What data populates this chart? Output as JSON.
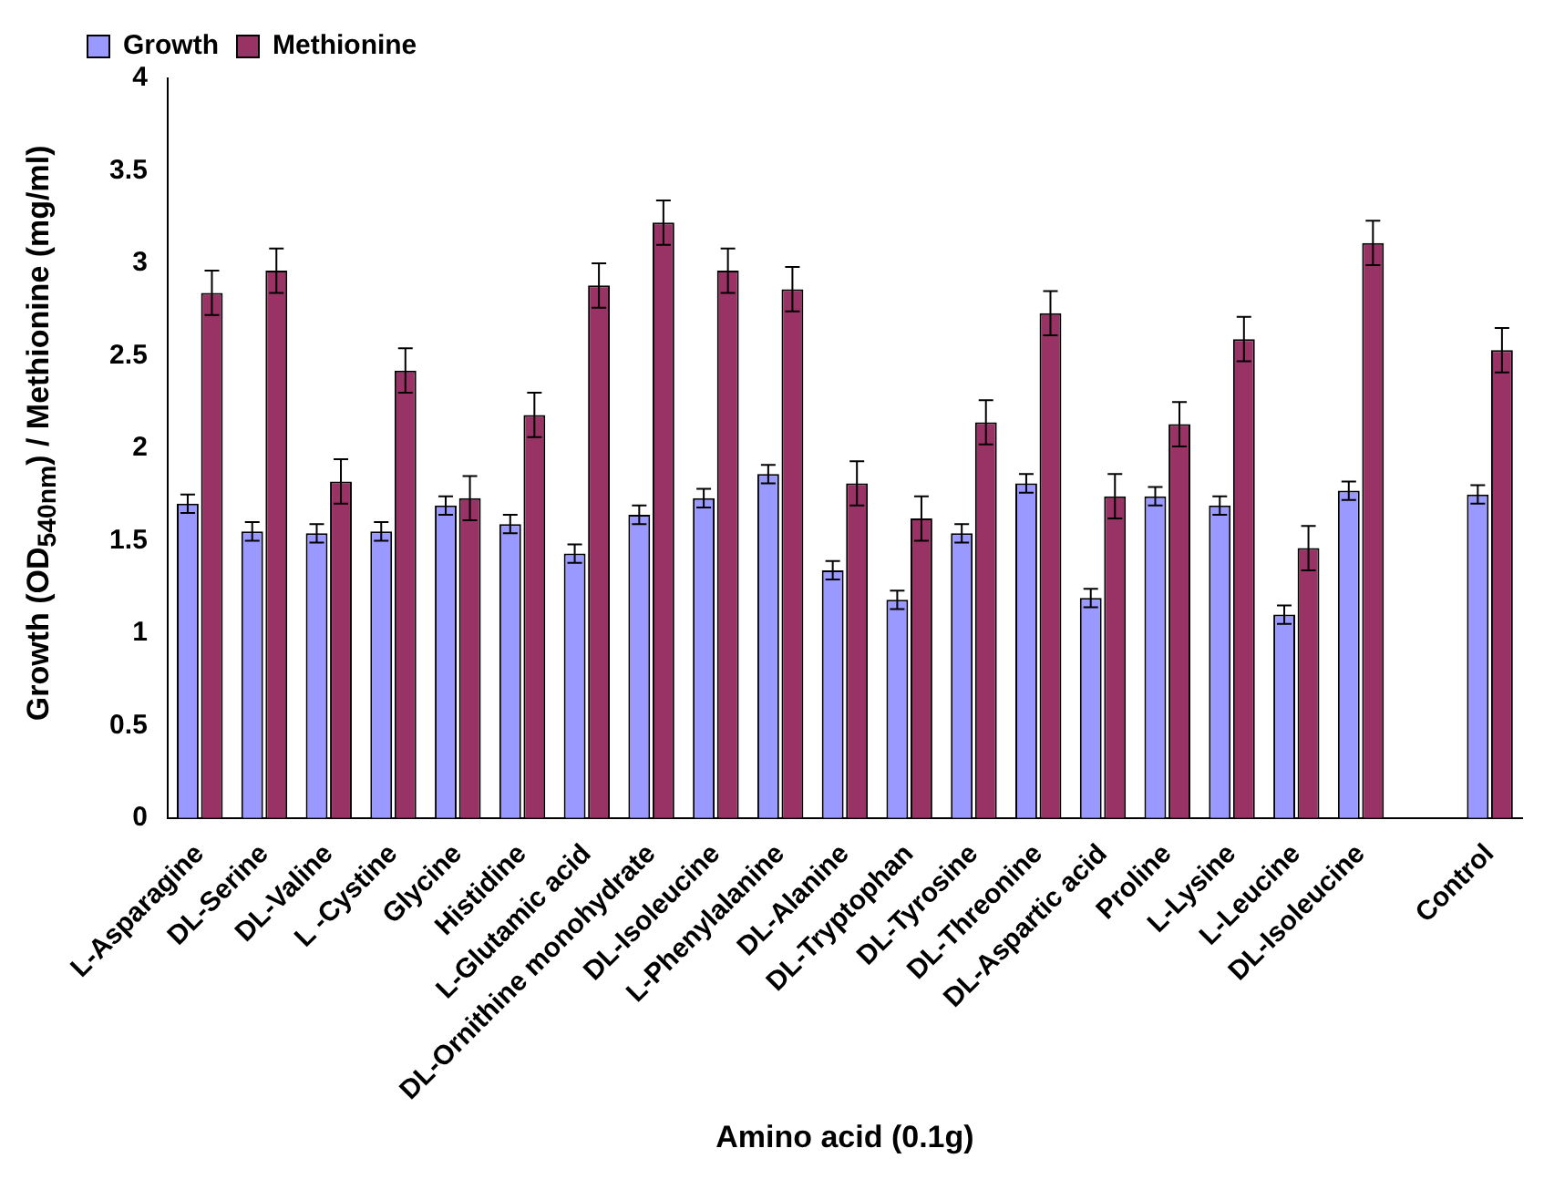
{
  "chart_data": {
    "type": "bar",
    "xlabel": "Amino acid (0.1g)",
    "ylabel": "Growth (OD$_{540nm}$) / Methionine (mg/ml)",
    "categories": [
      "L-Asparagine",
      "DL-Serine",
      "DL-Valine",
      "L -Cystine",
      "Glycine",
      "Histidine",
      "L-Glutamic acid",
      "DL-Ornithine monohydrate",
      "DL-Isoleucine",
      "L-Phenylalanine",
      "DL-Alanine",
      "DL-Tryptophan",
      "DL-Tyrosine",
      "DL-Threonine",
      "DL-Aspartic acid",
      "Proline",
      "L-Lysine",
      "L-Leucine",
      "DL-Isoleucine",
      null,
      "Control"
    ],
    "series": [
      {
        "name": "Growth",
        "color": "#9999ff",
        "values": [
          1.7,
          1.55,
          1.54,
          1.55,
          1.69,
          1.59,
          1.43,
          1.64,
          1.73,
          1.86,
          1.34,
          1.18,
          1.54,
          1.81,
          1.19,
          1.74,
          1.69,
          1.1,
          1.77,
          null,
          1.75
        ],
        "errors": [
          0.05,
          0.05,
          0.05,
          0.05,
          0.05,
          0.05,
          0.05,
          0.05,
          0.05,
          0.05,
          0.05,
          0.05,
          0.05,
          0.05,
          0.05,
          0.05,
          0.05,
          0.05,
          0.05,
          null,
          0.05
        ]
      },
      {
        "name": "Methionine",
        "color": "#993366",
        "values": [
          2.84,
          2.96,
          1.82,
          2.42,
          1.73,
          2.18,
          2.88,
          3.22,
          2.96,
          2.86,
          1.81,
          1.62,
          2.14,
          2.73,
          1.74,
          2.13,
          2.59,
          1.46,
          3.11,
          null,
          2.53
        ],
        "errors": [
          0.12,
          0.12,
          0.12,
          0.12,
          0.12,
          0.12,
          0.12,
          0.12,
          0.12,
          0.12,
          0.12,
          0.12,
          0.12,
          0.12,
          0.12,
          0.12,
          0.12,
          0.12,
          0.12,
          null,
          0.12
        ]
      }
    ],
    "ylim": [
      0,
      4
    ],
    "yticks": [
      0,
      0.5,
      1,
      1.5,
      2,
      2.5,
      3,
      3.5,
      4
    ],
    "grid": false,
    "legend": "top left"
  }
}
